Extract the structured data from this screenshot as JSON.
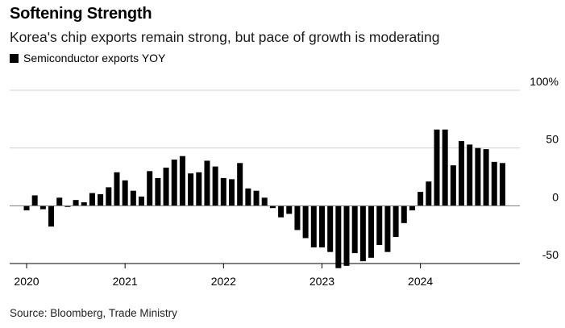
{
  "chart_data": {
    "type": "bar",
    "title": "Softening Strength",
    "subtitle": "Korea's chip exports remain strong, but pace of growth is moderating",
    "series": [
      {
        "name": "Semiconductor exports YOY",
        "color": "#000000",
        "start": "2020-01",
        "values": [
          -4,
          9,
          -3,
          -18,
          7,
          -1,
          5,
          3,
          11,
          10,
          16,
          29,
          22,
          13,
          8,
          30,
          24,
          33,
          40,
          43,
          28,
          29,
          39,
          34,
          24,
          23,
          37,
          15,
          13,
          7,
          -2,
          -10,
          -7,
          -21,
          -28,
          -36,
          -36,
          -40,
          -54,
          -52,
          -41,
          -48,
          -45,
          -34,
          -40,
          -27,
          -15,
          -4,
          12,
          21,
          66,
          66,
          35,
          56,
          53,
          50,
          49,
          38,
          37
        ]
      }
    ],
    "xlabel": "",
    "ylabel": "",
    "ylim": [
      -50,
      100
    ],
    "yticks": [
      100,
      50,
      0,
      -50
    ],
    "ytick_labels": [
      "100%",
      "50",
      "0",
      "-50"
    ],
    "xticks": [
      "2020",
      "2021",
      "2022",
      "2023",
      "2024"
    ],
    "legend_position": "top-left",
    "grid": "horizontal",
    "source": "Source: Bloomberg, Trade Ministry"
  }
}
